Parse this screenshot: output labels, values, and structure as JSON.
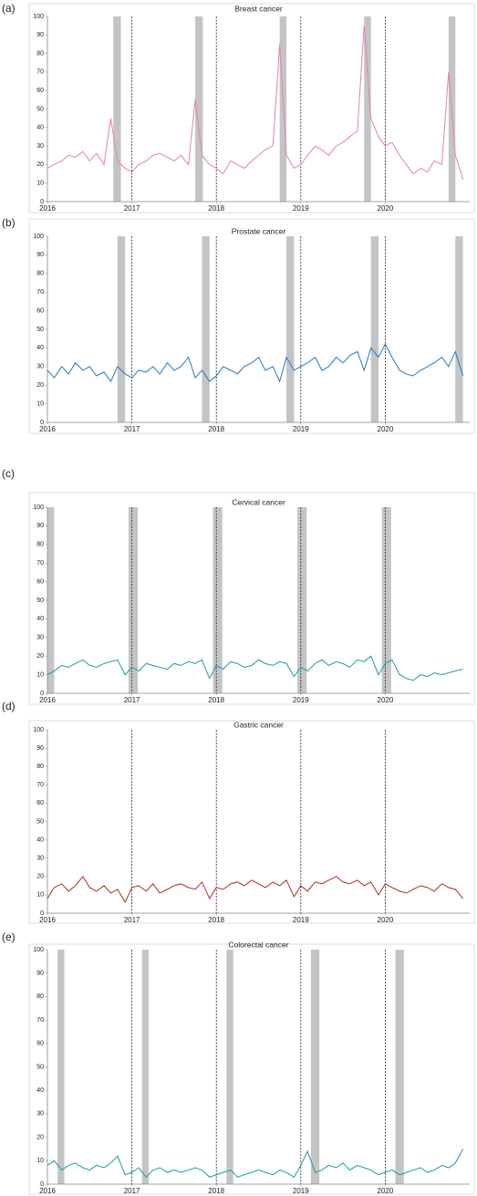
{
  "chart_data": [
    {
      "type": "line",
      "panel_label": "(a)",
      "title": "Breast cancer",
      "xlim": [
        2016,
        2021
      ],
      "ylim": [
        0,
        100
      ],
      "xticks": [
        2016,
        2017,
        2018,
        2019,
        2020
      ],
      "yticks": [
        0,
        10,
        20,
        30,
        40,
        50,
        60,
        70,
        80,
        90,
        100
      ],
      "shaded": [
        [
          2016.78,
          2016.87
        ],
        [
          2017.75,
          2017.84
        ],
        [
          2018.75,
          2018.83
        ],
        [
          2019.75,
          2019.83
        ],
        [
          2020.75,
          2020.83
        ]
      ],
      "vlines": [
        2017,
        2018,
        2019,
        2020
      ],
      "x": [
        2016,
        2016.08,
        2016.17,
        2016.25,
        2016.33,
        2016.42,
        2016.5,
        2016.58,
        2016.67,
        2016.75,
        2016.83,
        2016.92,
        2017,
        2017.08,
        2017.17,
        2017.25,
        2017.33,
        2017.42,
        2017.5,
        2017.58,
        2017.67,
        2017.75,
        2017.83,
        2017.92,
        2018,
        2018.08,
        2018.17,
        2018.25,
        2018.33,
        2018.42,
        2018.5,
        2018.58,
        2018.67,
        2018.75,
        2018.83,
        2018.92,
        2019,
        2019.08,
        2019.17,
        2019.25,
        2019.33,
        2019.42,
        2019.5,
        2019.58,
        2019.67,
        2019.75,
        2019.83,
        2019.92,
        2020,
        2020.08,
        2020.17,
        2020.25,
        2020.33,
        2020.42,
        2020.5,
        2020.58,
        2020.67,
        2020.75,
        2020.83,
        2020.92
      ],
      "color": "#e87db5",
      "values": [
        18,
        20,
        22,
        25,
        24,
        27,
        22,
        26,
        20,
        45,
        22,
        18,
        16,
        20,
        22,
        25,
        26,
        24,
        22,
        25,
        20,
        55,
        25,
        20,
        18,
        15,
        22,
        20,
        18,
        22,
        25,
        28,
        30,
        85,
        25,
        18,
        20,
        25,
        30,
        28,
        25,
        30,
        32,
        35,
        38,
        95,
        45,
        35,
        30,
        32,
        25,
        20,
        15,
        18,
        16,
        22,
        20,
        70,
        25,
        12
      ]
    },
    {
      "type": "line",
      "panel_label": "(b)",
      "title": "Prostate cancer",
      "xlim": [
        2016,
        2021
      ],
      "ylim": [
        0,
        100
      ],
      "xticks": [
        2016,
        2017,
        2018,
        2019,
        2020
      ],
      "yticks": [
        0,
        10,
        20,
        30,
        40,
        50,
        60,
        70,
        80,
        90,
        100
      ],
      "shaded": [
        [
          2016.83,
          2016.92
        ],
        [
          2017.83,
          2017.92
        ],
        [
          2018.83,
          2018.92
        ],
        [
          2019.83,
          2019.92
        ],
        [
          2020.83,
          2020.92
        ]
      ],
      "vlines": [
        2017,
        2018,
        2019,
        2020
      ],
      "x": [
        2016,
        2016.08,
        2016.17,
        2016.25,
        2016.33,
        2016.42,
        2016.5,
        2016.58,
        2016.67,
        2016.75,
        2016.83,
        2016.92,
        2017,
        2017.08,
        2017.17,
        2017.25,
        2017.33,
        2017.42,
        2017.5,
        2017.58,
        2017.67,
        2017.75,
        2017.83,
        2017.92,
        2018,
        2018.08,
        2018.17,
        2018.25,
        2018.33,
        2018.42,
        2018.5,
        2018.58,
        2018.67,
        2018.75,
        2018.83,
        2018.92,
        2019,
        2019.08,
        2019.17,
        2019.25,
        2019.33,
        2019.42,
        2019.5,
        2019.58,
        2019.67,
        2019.75,
        2019.83,
        2019.92,
        2020,
        2020.08,
        2020.17,
        2020.25,
        2020.33,
        2020.42,
        2020.5,
        2020.58,
        2020.67,
        2020.75,
        2020.83,
        2020.92
      ],
      "color": "#1f7bc2",
      "values": [
        28,
        24,
        30,
        26,
        32,
        28,
        30,
        25,
        27,
        22,
        30,
        26,
        24,
        28,
        27,
        30,
        26,
        32,
        28,
        30,
        35,
        24,
        28,
        22,
        25,
        30,
        28,
        26,
        30,
        32,
        35,
        28,
        30,
        22,
        35,
        28,
        30,
        32,
        35,
        28,
        30,
        35,
        32,
        36,
        38,
        28,
        40,
        35,
        42,
        35,
        28,
        26,
        25,
        28,
        30,
        32,
        35,
        30,
        38,
        25
      ]
    },
    {
      "type": "line",
      "panel_label": "(c)",
      "title": "Cervical cancer",
      "xlim": [
        2016,
        2021
      ],
      "ylim": [
        0,
        100
      ],
      "xticks": [
        2016,
        2017,
        2018,
        2019,
        2020
      ],
      "yticks": [
        0,
        10,
        20,
        30,
        40,
        50,
        60,
        70,
        80,
        90,
        100
      ],
      "shaded": [
        [
          2016.0,
          2016.08
        ],
        [
          2016.96,
          2017.07
        ],
        [
          2017.96,
          2018.07
        ],
        [
          2018.96,
          2019.07
        ],
        [
          2019.96,
          2020.07
        ]
      ],
      "vlines": [
        2017,
        2018,
        2019,
        2020
      ],
      "x": [
        2016,
        2016.08,
        2016.17,
        2016.25,
        2016.33,
        2016.42,
        2016.5,
        2016.58,
        2016.67,
        2016.75,
        2016.83,
        2016.92,
        2017,
        2017.08,
        2017.17,
        2017.25,
        2017.33,
        2017.42,
        2017.5,
        2017.58,
        2017.67,
        2017.75,
        2017.83,
        2017.92,
        2018,
        2018.08,
        2018.17,
        2018.25,
        2018.33,
        2018.42,
        2018.5,
        2018.58,
        2018.67,
        2018.75,
        2018.83,
        2018.92,
        2019,
        2019.08,
        2019.17,
        2019.25,
        2019.33,
        2019.42,
        2019.5,
        2019.58,
        2019.67,
        2019.75,
        2019.83,
        2019.92,
        2020,
        2020.08,
        2020.17,
        2020.25,
        2020.33,
        2020.42,
        2020.5,
        2020.58,
        2020.67,
        2020.75,
        2020.83,
        2020.92
      ],
      "color": "#1a9ba0",
      "values": [
        10,
        12,
        15,
        14,
        16,
        18,
        15,
        14,
        16,
        17,
        18,
        10,
        14,
        12,
        16,
        15,
        14,
        13,
        16,
        15,
        17,
        16,
        18,
        8,
        15,
        13,
        17,
        16,
        14,
        15,
        18,
        16,
        15,
        17,
        16,
        9,
        14,
        12,
        16,
        18,
        15,
        17,
        16,
        14,
        18,
        17,
        20,
        10,
        16,
        18,
        10,
        8,
        7,
        10,
        9,
        11,
        10,
        11,
        12,
        13
      ]
    },
    {
      "type": "line",
      "panel_label": "(d)",
      "title": "Gastric cancer",
      "xlim": [
        2016,
        2021
      ],
      "ylim": [
        0,
        100
      ],
      "xticks": [
        2016,
        2017,
        2018,
        2019,
        2020
      ],
      "yticks": [
        0,
        10,
        20,
        30,
        40,
        50,
        60,
        70,
        80,
        90,
        100
      ],
      "shaded": [],
      "vlines": [
        2017,
        2018,
        2019,
        2020
      ],
      "x": [
        2016,
        2016.08,
        2016.17,
        2016.25,
        2016.33,
        2016.42,
        2016.5,
        2016.58,
        2016.67,
        2016.75,
        2016.83,
        2016.92,
        2017,
        2017.08,
        2017.17,
        2017.25,
        2017.33,
        2017.42,
        2017.5,
        2017.58,
        2017.67,
        2017.75,
        2017.83,
        2017.92,
        2018,
        2018.08,
        2018.17,
        2018.25,
        2018.33,
        2018.42,
        2018.5,
        2018.58,
        2018.67,
        2018.75,
        2018.83,
        2018.92,
        2019,
        2019.08,
        2019.17,
        2019.25,
        2019.33,
        2019.42,
        2019.5,
        2019.58,
        2019.67,
        2019.75,
        2019.83,
        2019.92,
        2020,
        2020.08,
        2020.17,
        2020.25,
        2020.33,
        2020.42,
        2020.5,
        2020.58,
        2020.67,
        2020.75,
        2020.83,
        2020.92
      ],
      "color": "#a8321c",
      "values": [
        8,
        14,
        16,
        12,
        15,
        20,
        14,
        12,
        15,
        11,
        13,
        6,
        14,
        15,
        12,
        16,
        11,
        13,
        15,
        16,
        14,
        13,
        17,
        8,
        14,
        13,
        16,
        17,
        15,
        18,
        16,
        14,
        17,
        15,
        18,
        9,
        15,
        12,
        17,
        16,
        18,
        20,
        17,
        16,
        18,
        15,
        17,
        10,
        16,
        14,
        12,
        11,
        13,
        15,
        14,
        12,
        16,
        14,
        13,
        8
      ]
    },
    {
      "type": "line",
      "panel_label": "(e)",
      "title": "Colorectal cancer",
      "xlim": [
        2016,
        2021
      ],
      "ylim": [
        0,
        100
      ],
      "xticks": [
        2016,
        2017,
        2018,
        2019,
        2020
      ],
      "yticks": [
        0,
        10,
        20,
        30,
        40,
        50,
        60,
        70,
        80,
        90,
        100
      ],
      "shaded": [
        [
          2016.12,
          2016.2
        ],
        [
          2017.12,
          2017.2
        ],
        [
          2018.12,
          2018.2
        ],
        [
          2019.12,
          2019.22
        ],
        [
          2020.12,
          2020.22
        ]
      ],
      "vlines": [
        2017,
        2018,
        2019,
        2020
      ],
      "x": [
        2016,
        2016.08,
        2016.17,
        2016.25,
        2016.33,
        2016.42,
        2016.5,
        2016.58,
        2016.67,
        2016.75,
        2016.83,
        2016.92,
        2017,
        2017.08,
        2017.17,
        2017.25,
        2017.33,
        2017.42,
        2017.5,
        2017.58,
        2017.67,
        2017.75,
        2017.83,
        2017.92,
        2018,
        2018.08,
        2018.17,
        2018.25,
        2018.33,
        2018.42,
        2018.5,
        2018.58,
        2018.67,
        2018.75,
        2018.83,
        2018.92,
        2019,
        2019.08,
        2019.17,
        2019.25,
        2019.33,
        2019.42,
        2019.5,
        2019.58,
        2019.67,
        2019.75,
        2019.83,
        2019.92,
        2020,
        2020.08,
        2020.17,
        2020.25,
        2020.33,
        2020.42,
        2020.5,
        2020.58,
        2020.67,
        2020.75,
        2020.83,
        2020.92
      ],
      "color": "#1a9ba0",
      "values": [
        8,
        10,
        6,
        8,
        9,
        7,
        6,
        8,
        7,
        9,
        12,
        4,
        5,
        7,
        3,
        6,
        7,
        5,
        6,
        5,
        6,
        7,
        6,
        3,
        4,
        5,
        6,
        3,
        4,
        5,
        6,
        5,
        4,
        6,
        5,
        3,
        8,
        14,
        5,
        6,
        8,
        7,
        9,
        6,
        8,
        7,
        6,
        4,
        5,
        6,
        4,
        5,
        6,
        7,
        5,
        6,
        8,
        7,
        9,
        15
      ]
    }
  ]
}
